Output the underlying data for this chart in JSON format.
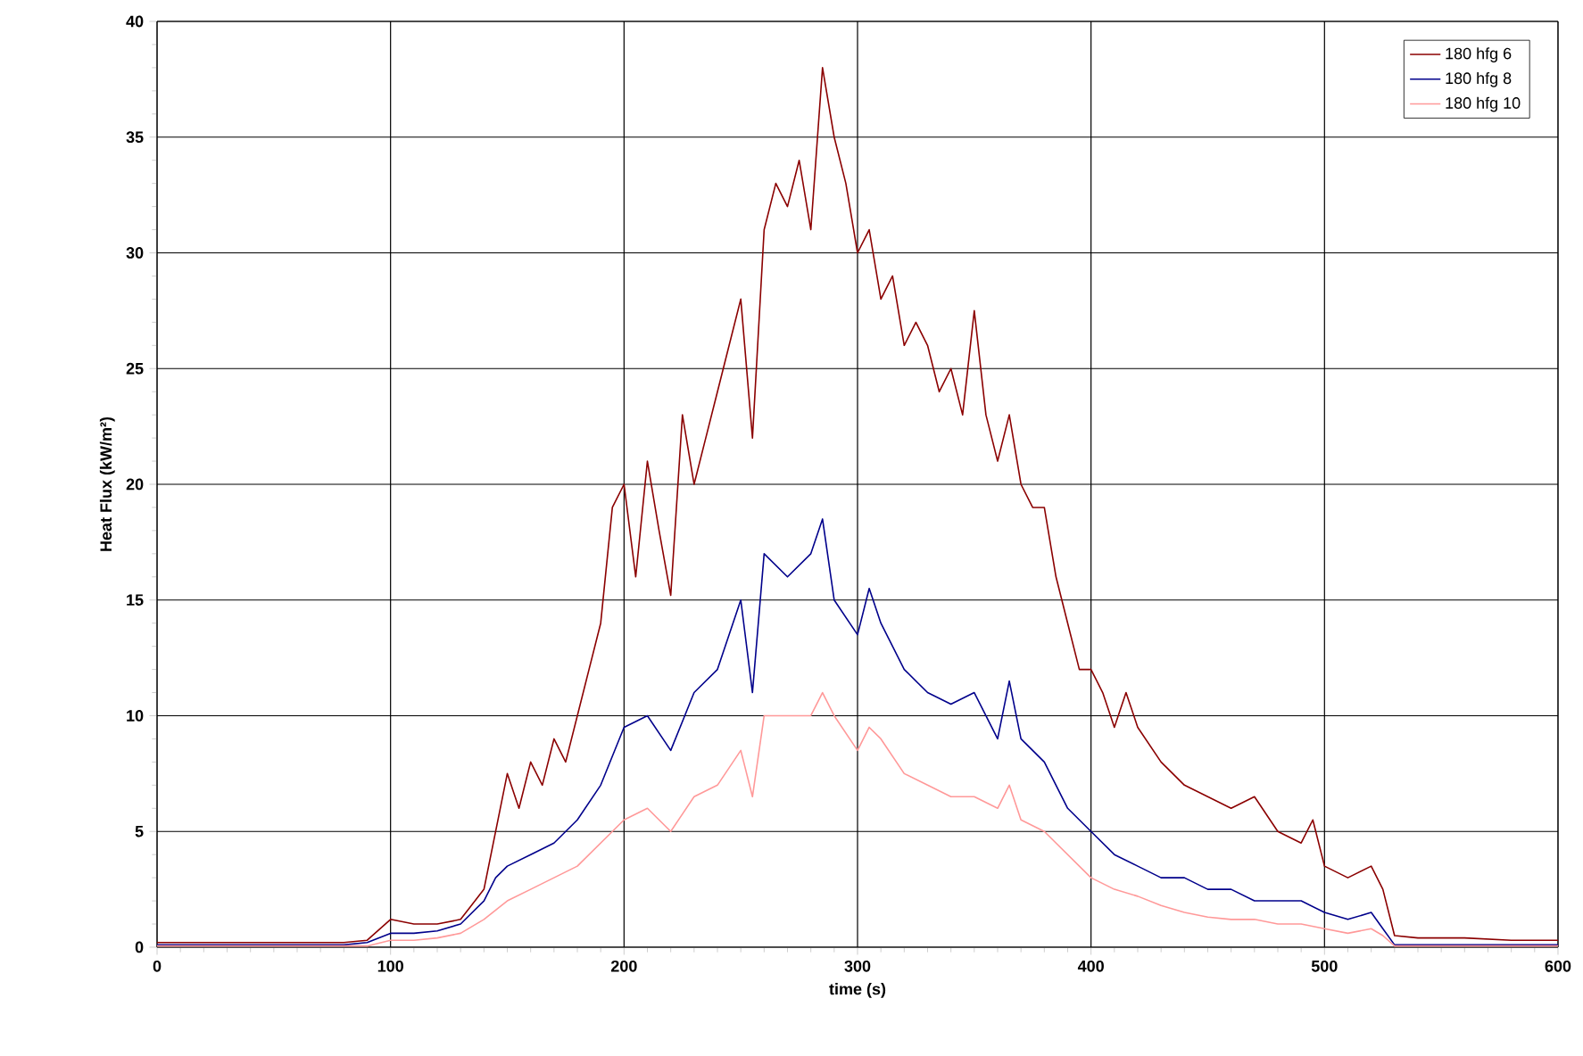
{
  "chart_data": {
    "type": "line",
    "xlabel": "time (s)",
    "ylabel": "Heat Flux (kW/m²)",
    "xlim": [
      0,
      600
    ],
    "ylim": [
      0,
      40
    ],
    "xticks": [
      0,
      100,
      200,
      300,
      400,
      500,
      600
    ],
    "yticks": [
      0,
      5,
      10,
      15,
      20,
      25,
      30,
      35,
      40
    ],
    "grid": true,
    "legend": "top right",
    "marker": "none",
    "line_style": "solid",
    "series": [
      {
        "name": "180 hfg 6",
        "color": "#8b0000",
        "x": [
          0,
          20,
          40,
          60,
          80,
          90,
          100,
          110,
          120,
          130,
          140,
          145,
          150,
          155,
          160,
          165,
          170,
          175,
          180,
          185,
          190,
          195,
          200,
          205,
          210,
          215,
          220,
          225,
          230,
          235,
          240,
          245,
          250,
          255,
          260,
          265,
          270,
          275,
          280,
          285,
          290,
          295,
          300,
          305,
          310,
          315,
          320,
          325,
          330,
          335,
          340,
          345,
          350,
          355,
          360,
          365,
          370,
          375,
          380,
          385,
          390,
          395,
          400,
          405,
          410,
          415,
          420,
          430,
          440,
          450,
          460,
          470,
          480,
          490,
          495,
          500,
          510,
          520,
          525,
          530,
          540,
          560,
          580,
          600
        ],
        "values": [
          0.2,
          0.2,
          0.2,
          0.2,
          0.2,
          0.3,
          1.2,
          1.0,
          1.0,
          1.2,
          2.5,
          5,
          7.5,
          6,
          8,
          7,
          9,
          8,
          10,
          12,
          14,
          19,
          20,
          16,
          21,
          18,
          15.2,
          23,
          20,
          22,
          24,
          26,
          28,
          22,
          31,
          33,
          32,
          34,
          31,
          38,
          35,
          33,
          30,
          31,
          28,
          29,
          26,
          27,
          26,
          24,
          25,
          23,
          27.5,
          23,
          21,
          23,
          20,
          19,
          19,
          16,
          14,
          12,
          12,
          11,
          9.5,
          11,
          9.5,
          8,
          7,
          6.5,
          6,
          6.5,
          5,
          4.5,
          5.5,
          3.5,
          3,
          3.5,
          2.5,
          0.5,
          0.4,
          0.4,
          0.3,
          0.3
        ]
      },
      {
        "name": "180 hfg 8",
        "color": "#00008b",
        "x": [
          0,
          20,
          40,
          60,
          80,
          90,
          100,
          110,
          120,
          130,
          140,
          145,
          150,
          160,
          170,
          180,
          190,
          200,
          210,
          220,
          230,
          240,
          250,
          255,
          260,
          270,
          280,
          285,
          290,
          300,
          305,
          310,
          320,
          330,
          340,
          350,
          360,
          365,
          370,
          380,
          390,
          400,
          410,
          420,
          430,
          440,
          450,
          460,
          470,
          480,
          490,
          500,
          510,
          520,
          525,
          530,
          540,
          560,
          580,
          600
        ],
        "values": [
          0.1,
          0.1,
          0.1,
          0.1,
          0.1,
          0.2,
          0.6,
          0.6,
          0.7,
          1,
          2,
          3,
          3.5,
          4,
          4.5,
          5.5,
          7,
          9.5,
          10,
          8.5,
          11,
          12,
          15,
          11,
          17,
          16,
          17,
          18.5,
          15,
          13.5,
          15.5,
          14,
          12,
          11,
          10.5,
          11,
          9,
          11.5,
          9,
          8,
          6,
          5,
          4,
          3.5,
          3,
          3,
          2.5,
          2.5,
          2,
          2,
          2,
          1.5,
          1.2,
          1.5,
          0.8,
          0.1,
          0.1,
          0.1,
          0.1,
          0.1
        ]
      },
      {
        "name": "180 hfg 10",
        "color": "#ff9999",
        "x": [
          0,
          20,
          40,
          60,
          80,
          90,
          100,
          110,
          120,
          130,
          140,
          150,
          160,
          170,
          180,
          190,
          200,
          210,
          220,
          230,
          240,
          250,
          255,
          260,
          270,
          280,
          285,
          290,
          300,
          305,
          310,
          320,
          330,
          340,
          350,
          360,
          365,
          370,
          380,
          390,
          400,
          410,
          420,
          430,
          440,
          450,
          460,
          470,
          480,
          490,
          500,
          510,
          520,
          525,
          530,
          540,
          560,
          580,
          600
        ],
        "values": [
          0.05,
          0.05,
          0.05,
          0.05,
          0.05,
          0.05,
          0.3,
          0.3,
          0.4,
          0.6,
          1.2,
          2,
          2.5,
          3,
          3.5,
          4.5,
          5.5,
          6,
          5,
          6.5,
          7,
          8.5,
          6.5,
          10,
          10,
          10,
          11,
          10,
          8.5,
          9.5,
          9,
          7.5,
          7,
          6.5,
          6.5,
          6,
          7,
          5.5,
          5,
          4,
          3,
          2.5,
          2.2,
          1.8,
          1.5,
          1.3,
          1.2,
          1.2,
          1.0,
          1.0,
          0.8,
          0.6,
          0.8,
          0.5,
          0.05,
          0.05,
          0.05,
          0.05,
          0.05
        ]
      }
    ]
  }
}
